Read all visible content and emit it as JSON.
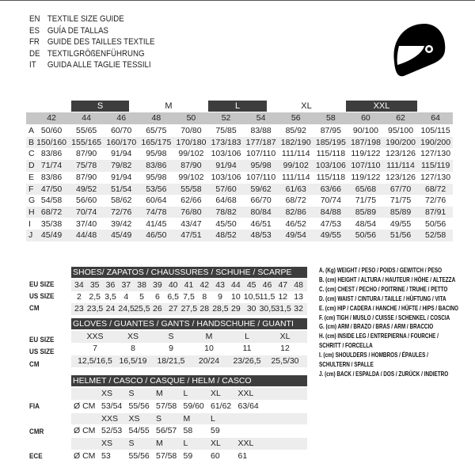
{
  "titles": [
    {
      "code": "EN",
      "text": "TEXTILE SIZE GUIDE"
    },
    {
      "code": "ES",
      "text": "GUÍA DE TALLAS"
    },
    {
      "code": "FR",
      "text": "GUIDE DES TAILLES TEXTILE"
    },
    {
      "code": "DE",
      "text": "TEXTILGRÖßENFÜHRUNG"
    },
    {
      "code": "IT",
      "text": "GUIDA ALLE TAGLIE TESSILI"
    }
  ],
  "logo_icon": "helmet-icon",
  "textile": {
    "size_groups": [
      "S",
      "M",
      "L",
      "XL",
      "XXL"
    ],
    "columns": [
      "42",
      "44",
      "46",
      "48",
      "50",
      "52",
      "54",
      "56",
      "58",
      "60",
      "62",
      "64"
    ],
    "rows": [
      {
        "label": "A",
        "values": [
          "50/60",
          "55/65",
          "60/70",
          "65/75",
          "70/80",
          "75/85",
          "83/88",
          "85/92",
          "87/95",
          "90/100",
          "95/100",
          "105/115"
        ]
      },
      {
        "label": "B",
        "values": [
          "150/160",
          "155/165",
          "160/170",
          "165/175",
          "170/180",
          "173/183",
          "177/187",
          "182/190",
          "185/195",
          "187/198",
          "190/200",
          "190/200"
        ]
      },
      {
        "label": "C",
        "values": [
          "83/86",
          "87/90",
          "91/94",
          "95/98",
          "99/102",
          "103/106",
          "107/110",
          "111/114",
          "115/118",
          "119/122",
          "123/126",
          "127/130"
        ]
      },
      {
        "label": "D",
        "values": [
          "71/74",
          "75/78",
          "79/82",
          "83/86",
          "87/90",
          "91/94",
          "95/98",
          "99/102",
          "103/106",
          "107/110",
          "111/114",
          "115/119"
        ]
      },
      {
        "label": "E",
        "values": [
          "83/86",
          "87/90",
          "91/94",
          "95/98",
          "99/102",
          "103/106",
          "107/110",
          "111/114",
          "115/118",
          "119/122",
          "123/126",
          "127/130"
        ]
      },
      {
        "label": "F",
        "values": [
          "47/50",
          "49/52",
          "51/54",
          "53/56",
          "55/58",
          "57/60",
          "59/62",
          "61/63",
          "63/66",
          "65/68",
          "67/70",
          "68/72"
        ]
      },
      {
        "label": "G",
        "values": [
          "54/58",
          "56/60",
          "58/62",
          "60/64",
          "62/66",
          "64/68",
          "66/70",
          "68/72",
          "70/74",
          "71/75",
          "71/75",
          "72/76"
        ]
      },
      {
        "label": "H",
        "values": [
          "68/72",
          "70/74",
          "72/76",
          "74/78",
          "76/80",
          "78/82",
          "80/84",
          "82/86",
          "84/88",
          "85/89",
          "85/89",
          "87/91"
        ]
      },
      {
        "label": "I",
        "values": [
          "35/38",
          "37/40",
          "39/42",
          "41/45",
          "43/47",
          "45/50",
          "46/51",
          "46/52",
          "47/53",
          "48/54",
          "49/55",
          "50/56"
        ]
      },
      {
        "label": "J",
        "values": [
          "45/49",
          "44/48",
          "45/49",
          "46/50",
          "47/51",
          "48/52",
          "48/53",
          "49/54",
          "49/55",
          "50/56",
          "51/56",
          "52/58"
        ]
      }
    ]
  },
  "shoes": {
    "title": "SHOES/ ZAPATOS / CHAUSSURES / SCHUHE / SCARPE",
    "rows": [
      {
        "label": "EU SIZE",
        "values": [
          "34",
          "35",
          "36",
          "37",
          "38",
          "39",
          "40",
          "41",
          "42",
          "43",
          "44",
          "45",
          "46",
          "47",
          "48"
        ]
      },
      {
        "label": "US SIZE",
        "values": [
          "2",
          "2,5",
          "3,5",
          "4",
          "5",
          "6",
          "6,5",
          "7,5",
          "8",
          "9",
          "10",
          "10,5",
          "11,5",
          "12",
          "13"
        ]
      },
      {
        "label": "CM",
        "values": [
          "23",
          "23,5",
          "24",
          "24,5",
          "25,5",
          "26",
          "27",
          "27,5",
          "28",
          "28,5",
          "29",
          "30",
          "30,5",
          "31,5",
          "32"
        ]
      }
    ]
  },
  "gloves": {
    "title": "GLOVES / GUANTES / GANTS / HANDSCHUHE / GUANTI",
    "rows": [
      {
        "label": "EU SIZE",
        "values": [
          "XXS",
          "XS",
          "S",
          "M",
          "L",
          "XL"
        ]
      },
      {
        "label": "US SIZE",
        "values": [
          "7",
          "8",
          "9",
          "10",
          "11",
          "12"
        ]
      },
      {
        "label": "CM",
        "values": [
          "12,5/16,5",
          "16,5/19",
          "18/21,5",
          "20/24",
          "23/26,5",
          "25,5/30"
        ]
      }
    ]
  },
  "helmet": {
    "title": "HELMET / CASCO / CASQUE / HELM / CASCO",
    "standards": [
      {
        "label": "FIA",
        "unit": "Ø CM",
        "sizes": [
          "XS",
          "S",
          "M",
          "L",
          "XL",
          "XXL"
        ],
        "values": [
          "53/54",
          "55/56",
          "57/58",
          "59/60",
          "61/62",
          "63/64"
        ]
      },
      {
        "label": "CMR",
        "unit": "Ø CM",
        "sizes": [
          "XXS",
          "XS",
          "S",
          "M",
          "L"
        ],
        "values": [
          "52/53",
          "54/55",
          "56/57",
          "58",
          "59"
        ]
      },
      {
        "label": "ECE",
        "unit": "Ø CM",
        "sizes": [
          "XS",
          "S",
          "M",
          "L",
          "XL",
          "XXL"
        ],
        "values": [
          "53",
          "55/56",
          "57/58",
          "59",
          "60",
          "61"
        ]
      }
    ]
  },
  "legend": [
    "A. (Kg) WEIGHT / PESO / POIDS / GEWITCH / PESO",
    "B. (cm) HEIGHT / ALTURA / HAUTEUR / HÖHE / ALTEZZA",
    "C. (cm) CHEST / PECHO / POITRINE / TRUHE / PETTO",
    "D. (cm) WAIST / CINTURA / TAILLE / HÜFTUNG / VITA",
    "E. (cm) HIP / CADERA / HANCHE / HÜFTE / HIPS /  BACINO",
    "F.  (cm) TIGH / MUSLO / CUISSE / SCHENKEL / COSCIA",
    "G. (cm) ARM  / BRAZO / BRAS / ARM / BRACCIO",
    "H. (cm) INSIDE LEG / ENTREPIERNA / FOURCHE /",
    "SCHRITT / FORCELLA",
    "I.  (cm) SHOULDERS / HOMBROS / ÉPAULES /",
    "SCHULTERN / SPALLE",
    "J. (cm) BACK / ESPALDA / DOS / ZURÜCK / INDIETRO"
  ]
}
